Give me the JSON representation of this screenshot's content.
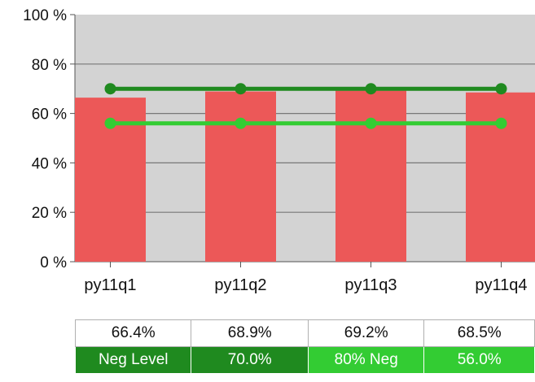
{
  "chart_data": {
    "type": "bar",
    "categories": [
      "py11q1",
      "py11q2",
      "py11q3",
      "py11q4"
    ],
    "values": [
      66.4,
      68.9,
      69.2,
      68.5
    ],
    "value_labels": [
      "66.4%",
      "68.9%",
      "69.2%",
      "68.5%"
    ],
    "ylim": [
      0,
      100
    ],
    "y_ticks": [
      0,
      20,
      40,
      60,
      80,
      100
    ],
    "y_tick_labels": [
      "0 %",
      "20 %",
      "40 %",
      "60 %",
      "80 %",
      "100 %"
    ],
    "grid": true,
    "reference_lines": [
      {
        "name": "Neg Level",
        "value": 70.0,
        "value_label": "70.0%",
        "color": "#1f8a1f"
      },
      {
        "name": "80% Neg",
        "value": 56.0,
        "value_label": "56.0%",
        "color": "#33cc33"
      }
    ],
    "colors": {
      "bar": "#ec5858",
      "plot_background": "#d3d3d3",
      "grid": "#777777"
    }
  }
}
